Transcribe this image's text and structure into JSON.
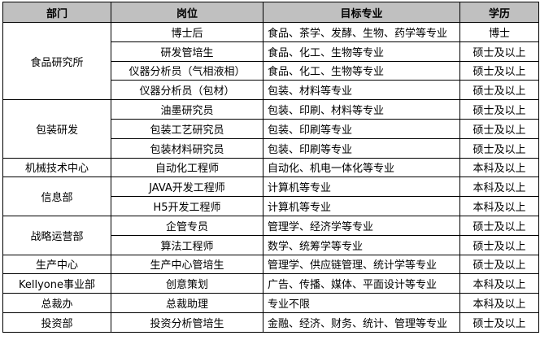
{
  "headers": [
    "部门",
    "岗位",
    "目标专业",
    "学历"
  ],
  "groups": [
    {
      "dept": "食品研究所",
      "rows": [
        {
          "position": "博士后",
          "major": "食品、茶学、发酵、生物、药学等专业",
          "degree": "博士"
        },
        {
          "position": "研发管培生",
          "major": "食品、化工、生物等专业",
          "degree": "硕士及以上"
        },
        {
          "position": "仪器分析员（气相液相）",
          "major": "食品、化工、生物等专业",
          "degree": "硕士及以上"
        },
        {
          "position": "仪器分析员（包材）",
          "major": "包装、材料等专业",
          "degree": "硕士及以上"
        }
      ]
    },
    {
      "dept": "包装研发",
      "rows": [
        {
          "position": "油墨研究员",
          "major": "包装、印刷、材料等专业",
          "degree": "硕士及以上"
        },
        {
          "position": "包装工艺研究员",
          "major": "包装、印刷等专业",
          "degree": "硕士及以上"
        },
        {
          "position": "包装材料研究员",
          "major": "包装、印刷等专业",
          "degree": "硕士及以上"
        }
      ]
    },
    {
      "dept": "机械技术中心",
      "rows": [
        {
          "position": "自动化工程师",
          "major": "自动化、机电一体化等专业",
          "degree": "本科及以上"
        }
      ]
    },
    {
      "dept": "信息部",
      "rows": [
        {
          "position": "JAVA开发工程师",
          "major": "计算机等专业",
          "degree": "本科及以上"
        },
        {
          "position": "H5开发工程师",
          "major": "计算机等专业",
          "degree": "本科及以上"
        }
      ]
    },
    {
      "dept": "战略运营部",
      "rows": [
        {
          "position": "企管专员",
          "major": "管理学、经济学等专业",
          "degree": "硕士及以上"
        },
        {
          "position": "算法工程师",
          "major": "数学、统筹学等专业",
          "degree": "硕士及以上"
        }
      ]
    },
    {
      "dept": "生产中心",
      "rows": [
        {
          "position": "生产中心管培生",
          "major": "管理学、供应链管理、统计学等专业",
          "degree": "硕士及以上"
        }
      ]
    },
    {
      "dept": "Kellyone事业部",
      "rows": [
        {
          "position": "创意策划",
          "major": "广告、传播、媒体、平面设计等专业",
          "degree": "本科及以上"
        }
      ]
    },
    {
      "dept": "总裁办",
      "rows": [
        {
          "position": "总裁助理",
          "major": "专业不限",
          "degree": "本科及以上"
        }
      ]
    },
    {
      "dept": "投资部",
      "rows": [
        {
          "position": "投资分析管培生",
          "major": "金融、经济、财务、统计、管理等专业",
          "degree": "硕士及以上"
        }
      ]
    }
  ]
}
